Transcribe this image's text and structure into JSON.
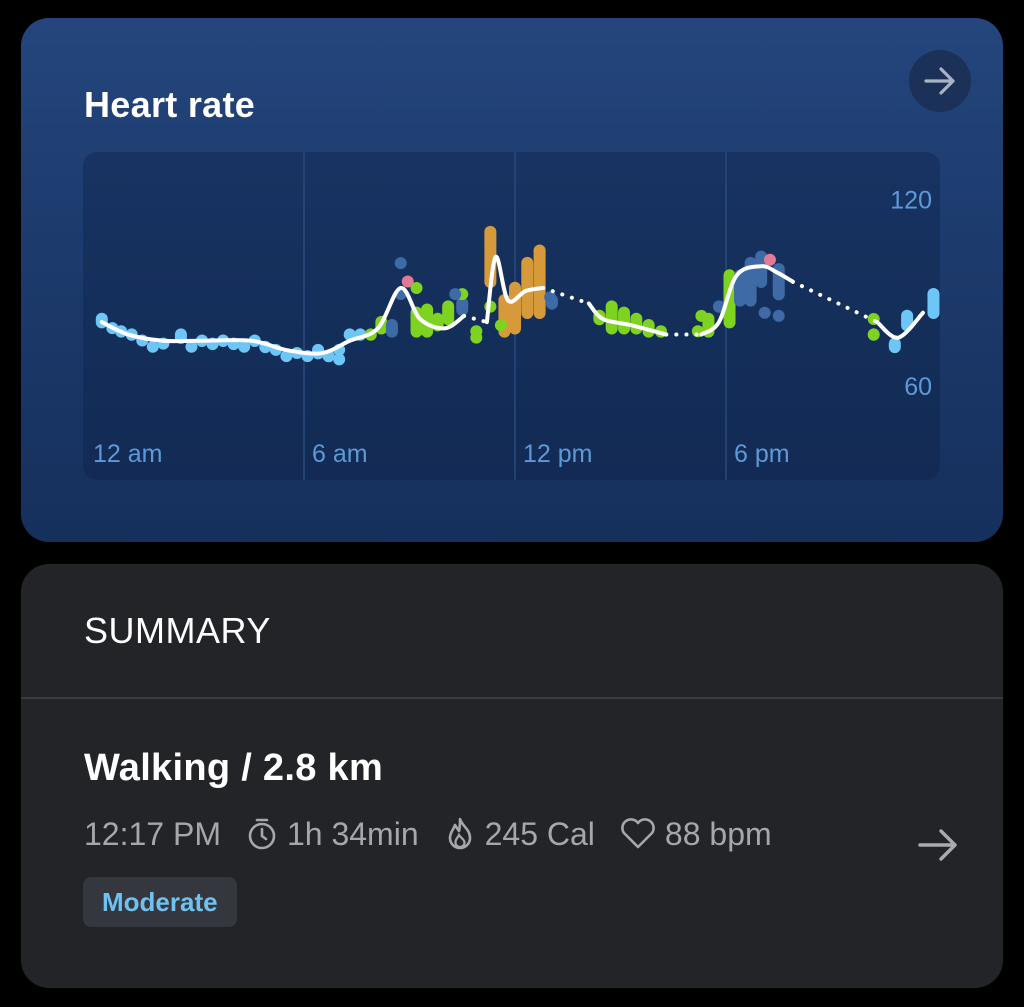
{
  "heart_rate_card": {
    "title": "Heart rate",
    "arrow_icon": "arrow-right-icon"
  },
  "chart_data": {
    "type": "bar",
    "title": "",
    "x_ticks": [
      "12 am",
      "6 am",
      "12 pm",
      "6 pm"
    ],
    "y_ticks": [
      "120",
      "60"
    ],
    "ylim": [
      50,
      125
    ],
    "xlim_hours": [
      0,
      24
    ],
    "zone_colors": {
      "resting": "#6ec6f6",
      "light": "#7ed321",
      "moderate": "#d79a3a",
      "peak": "#e07a96",
      "ambient": "#3e6aa6"
    },
    "bars": [
      {
        "h": 0.25,
        "lo": 75,
        "hi": 80,
        "z": "resting"
      },
      {
        "h": 0.55,
        "lo": 74,
        "hi": 77,
        "z": "resting"
      },
      {
        "h": 0.8,
        "lo": 72,
        "hi": 76,
        "z": "resting"
      },
      {
        "h": 1.1,
        "lo": 71,
        "hi": 75,
        "z": "resting"
      },
      {
        "h": 1.4,
        "lo": 71,
        "hi": 73,
        "z": "resting"
      },
      {
        "h": 1.7,
        "lo": 68,
        "hi": 71,
        "z": "resting"
      },
      {
        "h": 2.0,
        "lo": 70,
        "hi": 72,
        "z": "resting"
      },
      {
        "h": 2.5,
        "lo": 70,
        "hi": 75,
        "z": "resting"
      },
      {
        "h": 2.8,
        "lo": 69,
        "hi": 71,
        "z": "resting"
      },
      {
        "h": 3.1,
        "lo": 69,
        "hi": 73,
        "z": "resting"
      },
      {
        "h": 3.4,
        "lo": 68,
        "hi": 72,
        "z": "resting"
      },
      {
        "h": 3.7,
        "lo": 69,
        "hi": 73,
        "z": "resting"
      },
      {
        "h": 4.0,
        "lo": 68,
        "hi": 72,
        "z": "resting"
      },
      {
        "h": 4.3,
        "lo": 69,
        "hi": 71,
        "z": "resting"
      },
      {
        "h": 4.6,
        "lo": 69,
        "hi": 73,
        "z": "resting"
      },
      {
        "h": 4.9,
        "lo": 67,
        "hi": 71,
        "z": "resting"
      },
      {
        "h": 5.2,
        "lo": 67,
        "hi": 70,
        "z": "resting"
      },
      {
        "h": 5.5,
        "lo": 66,
        "hi": 68,
        "z": "resting"
      },
      {
        "h": 5.8,
        "lo": 66,
        "hi": 69,
        "z": "resting"
      },
      {
        "h": 6.1,
        "lo": 65,
        "hi": 68,
        "z": "resting"
      },
      {
        "h": 6.4,
        "lo": 65,
        "hi": 70,
        "z": "resting"
      },
      {
        "h": 6.7,
        "lo": 65,
        "hi": 68,
        "z": "resting"
      },
      {
        "h": 7.0,
        "lo": 68,
        "hi": 70,
        "z": "resting"
      },
      {
        "h": 7.3,
        "lo": 71,
        "hi": 75,
        "z": "resting"
      },
      {
        "h": 7.6,
        "lo": 71,
        "hi": 75,
        "z": "resting"
      },
      {
        "h": 7.9,
        "lo": 71,
        "hi": 75,
        "z": "light"
      },
      {
        "h": 8.2,
        "lo": 73,
        "hi": 79,
        "z": "light"
      },
      {
        "h": 8.5,
        "lo": 72,
        "hi": 78,
        "z": "ambient"
      },
      {
        "h": 8.75,
        "lo": 86,
        "hi": 88,
        "z": "ambient"
      },
      {
        "h": 8.95,
        "lo": 89,
        "hi": 92,
        "z": "peak"
      },
      {
        "h": 9.2,
        "lo": 72,
        "hi": 82,
        "z": "light"
      },
      {
        "h": 9.5,
        "lo": 72,
        "hi": 83,
        "z": "light"
      },
      {
        "h": 9.8,
        "lo": 74,
        "hi": 80,
        "z": "light"
      },
      {
        "h": 10.1,
        "lo": 76,
        "hi": 84,
        "z": "light"
      },
      {
        "h": 10.5,
        "lo": 79,
        "hi": 85,
        "z": "ambient"
      },
      {
        "h": 10.9,
        "lo": 73,
        "hi": 76,
        "z": "light"
      },
      {
        "h": 11.3,
        "lo": 88,
        "hi": 108,
        "z": "moderate"
      },
      {
        "h": 11.7,
        "lo": 72,
        "hi": 86,
        "z": "moderate"
      },
      {
        "h": 12.0,
        "lo": 73,
        "hi": 90,
        "z": "moderate"
      },
      {
        "h": 12.35,
        "lo": 78,
        "hi": 98,
        "z": "moderate"
      },
      {
        "h": 12.7,
        "lo": 78,
        "hi": 102,
        "z": "moderate"
      },
      {
        "h": 13.05,
        "lo": 81,
        "hi": 86,
        "z": "ambient"
      },
      {
        "h": 14.4,
        "lo": 76,
        "hi": 81,
        "z": "light"
      },
      {
        "h": 14.75,
        "lo": 73,
        "hi": 84,
        "z": "light"
      },
      {
        "h": 15.1,
        "lo": 73,
        "hi": 82,
        "z": "light"
      },
      {
        "h": 15.45,
        "lo": 73,
        "hi": 80,
        "z": "light"
      },
      {
        "h": 15.8,
        "lo": 72,
        "hi": 78,
        "z": "light"
      },
      {
        "h": 16.15,
        "lo": 72,
        "hi": 76,
        "z": "light"
      },
      {
        "h": 17.2,
        "lo": 73,
        "hi": 76,
        "z": "light"
      },
      {
        "h": 17.5,
        "lo": 72,
        "hi": 80,
        "z": "light"
      },
      {
        "h": 17.8,
        "lo": 80,
        "hi": 84,
        "z": "ambient"
      },
      {
        "h": 18.1,
        "lo": 75,
        "hi": 94,
        "z": "light"
      },
      {
        "h": 18.4,
        "lo": 82,
        "hi": 94,
        "z": "ambient"
      },
      {
        "h": 18.7,
        "lo": 82,
        "hi": 98,
        "z": "ambient"
      },
      {
        "h": 19.0,
        "lo": 88,
        "hi": 100,
        "z": "ambient"
      },
      {
        "h": 19.25,
        "lo": 96,
        "hi": 99,
        "z": "peak"
      },
      {
        "h": 19.5,
        "lo": 84,
        "hi": 96,
        "z": "ambient"
      },
      {
        "h": 22.2,
        "lo": 71,
        "hi": 75,
        "z": "light"
      },
      {
        "h": 22.8,
        "lo": 67,
        "hi": 72,
        "z": "resting"
      },
      {
        "h": 23.15,
        "lo": 74,
        "hi": 81,
        "z": "resting"
      },
      {
        "h": 23.9,
        "lo": 78,
        "hi": 88,
        "z": "resting"
      }
    ],
    "dots": [
      {
        "h": 8.75,
        "v": 96,
        "z": "ambient"
      },
      {
        "h": 9.2,
        "v": 88,
        "z": "light"
      },
      {
        "h": 10.5,
        "v": 86,
        "z": "light"
      },
      {
        "h": 10.9,
        "v": 72,
        "z": "light"
      },
      {
        "h": 11.3,
        "v": 82,
        "z": "light"
      },
      {
        "h": 11.6,
        "v": 76,
        "z": "light"
      },
      {
        "h": 10.3,
        "v": 86,
        "z": "ambient"
      },
      {
        "h": 13.0,
        "v": 85,
        "z": "ambient"
      },
      {
        "h": 17.3,
        "v": 79,
        "z": "light"
      },
      {
        "h": 19.1,
        "v": 80,
        "z": "ambient"
      },
      {
        "h": 19.5,
        "v": 79,
        "z": "ambient"
      },
      {
        "h": 22.2,
        "v": 78,
        "z": "light"
      },
      {
        "h": 7.0,
        "v": 65,
        "z": "resting"
      },
      {
        "h": 6.7,
        "v": 66,
        "z": "resting"
      }
    ],
    "trend": [
      {
        "h": 0.25,
        "v": 77
      },
      {
        "h": 1.0,
        "v": 73
      },
      {
        "h": 2.0,
        "v": 71
      },
      {
        "h": 3.0,
        "v": 71
      },
      {
        "h": 4.5,
        "v": 71
      },
      {
        "h": 5.5,
        "v": 68
      },
      {
        "h": 6.5,
        "v": 67
      },
      {
        "h": 7.3,
        "v": 71
      },
      {
        "h": 8.1,
        "v": 75
      },
      {
        "h": 8.75,
        "v": 88
      },
      {
        "h": 9.3,
        "v": 78
      },
      {
        "h": 10.0,
        "v": 75
      },
      {
        "h": 10.55,
        "v": 79
      },
      {
        "h": 11.2,
        "v": 77
      },
      {
        "h": 11.45,
        "v": 98
      },
      {
        "h": 11.8,
        "v": 84
      },
      {
        "h": 12.3,
        "v": 87
      },
      {
        "h": 12.8,
        "v": 88
      },
      {
        "h": 14.1,
        "v": 83
      },
      {
        "h": 14.5,
        "v": 78
      },
      {
        "h": 15.3,
        "v": 76
      },
      {
        "h": 16.3,
        "v": 73
      },
      {
        "h": 17.3,
        "v": 73
      },
      {
        "h": 17.8,
        "v": 77
      },
      {
        "h": 18.3,
        "v": 92
      },
      {
        "h": 19.0,
        "v": 95
      },
      {
        "h": 19.45,
        "v": 93
      },
      {
        "h": 19.9,
        "v": 90
      },
      {
        "h": 22.3,
        "v": 77
      },
      {
        "h": 22.9,
        "v": 72
      },
      {
        "h": 23.6,
        "v": 80
      }
    ],
    "trend_gaps": [
      [
        10.55,
        11.2
      ],
      [
        12.8,
        14.1
      ],
      [
        16.3,
        17.3
      ],
      [
        19.9,
        22.3
      ]
    ]
  },
  "summary_card": {
    "title": "SUMMARY",
    "activity": {
      "title": "Walking / 2.8 km",
      "time": "12:17 PM",
      "duration": "1h 34min",
      "calories": "245 Cal",
      "avg_hr": "88 bpm",
      "intensity_badge": "Moderate",
      "icons": [
        "timer-icon",
        "flame-icon",
        "heart-icon",
        "arrow-right-icon"
      ]
    }
  }
}
